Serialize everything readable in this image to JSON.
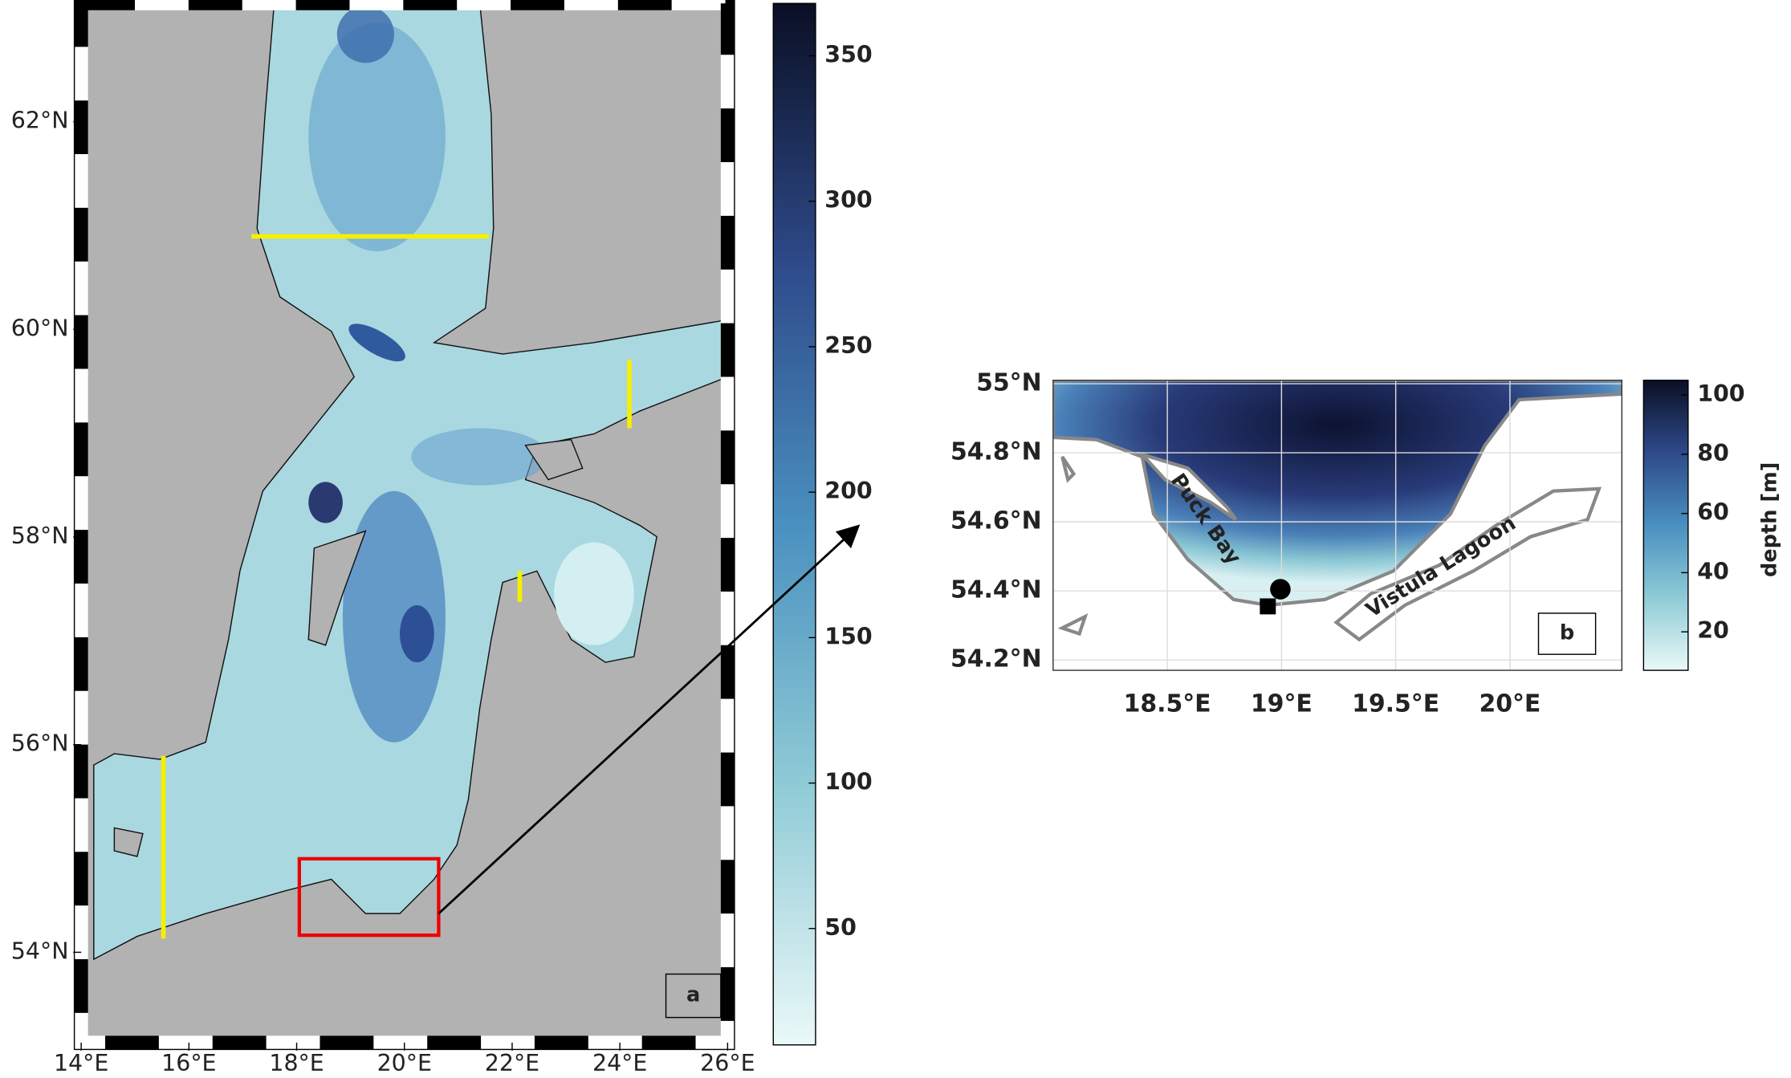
{
  "panel_a": {
    "label": "a",
    "xlim": [
      14,
      26
    ],
    "ylim": [
      53.13,
      63.14
    ],
    "xticks": [
      {
        "value": 14,
        "label": "14°E"
      },
      {
        "value": 16,
        "label": "16°E"
      },
      {
        "value": 18,
        "label": "18°E"
      },
      {
        "value": 20,
        "label": "20°E"
      },
      {
        "value": 22,
        "label": "22°E"
      },
      {
        "value": 24,
        "label": "24°E"
      },
      {
        "value": 26,
        "label": "26°E"
      }
    ],
    "yticks": [
      {
        "value": 54,
        "label": "54°N"
      },
      {
        "value": 56,
        "label": "56°N"
      },
      {
        "value": 58,
        "label": "58°N"
      },
      {
        "value": 60,
        "label": "60°N"
      },
      {
        "value": 62,
        "label": "62°N"
      }
    ]
  },
  "colorbar_a": {
    "lim": [
      10,
      368
    ],
    "ticks": [
      50,
      100,
      150,
      200,
      250,
      300,
      350
    ]
  },
  "panel_b": {
    "label": "b",
    "xlim": [
      18.0,
      20.49
    ],
    "ylim": [
      54.17,
      55.01
    ],
    "xticks": [
      {
        "value": 18.5,
        "label": "18.5°E"
      },
      {
        "value": 19,
        "label": "19°E"
      },
      {
        "value": 19.5,
        "label": "19.5°E"
      },
      {
        "value": 20,
        "label": "20°E"
      }
    ],
    "yticks": [
      {
        "value": 54.2,
        "label": "54.2°N"
      },
      {
        "value": 54.4,
        "label": "54.4°N"
      },
      {
        "value": 54.6,
        "label": "54.6°N"
      },
      {
        "value": 54.8,
        "label": "54.8°N"
      },
      {
        "value": 55,
        "label": "55°N"
      }
    ],
    "annotations": [
      "Puck Bay",
      "Vistula Lagoon"
    ]
  },
  "colorbar_b": {
    "title": "depth [m]",
    "lim": [
      7,
      105
    ],
    "ticks": [
      20,
      40,
      60,
      80,
      100
    ]
  }
}
